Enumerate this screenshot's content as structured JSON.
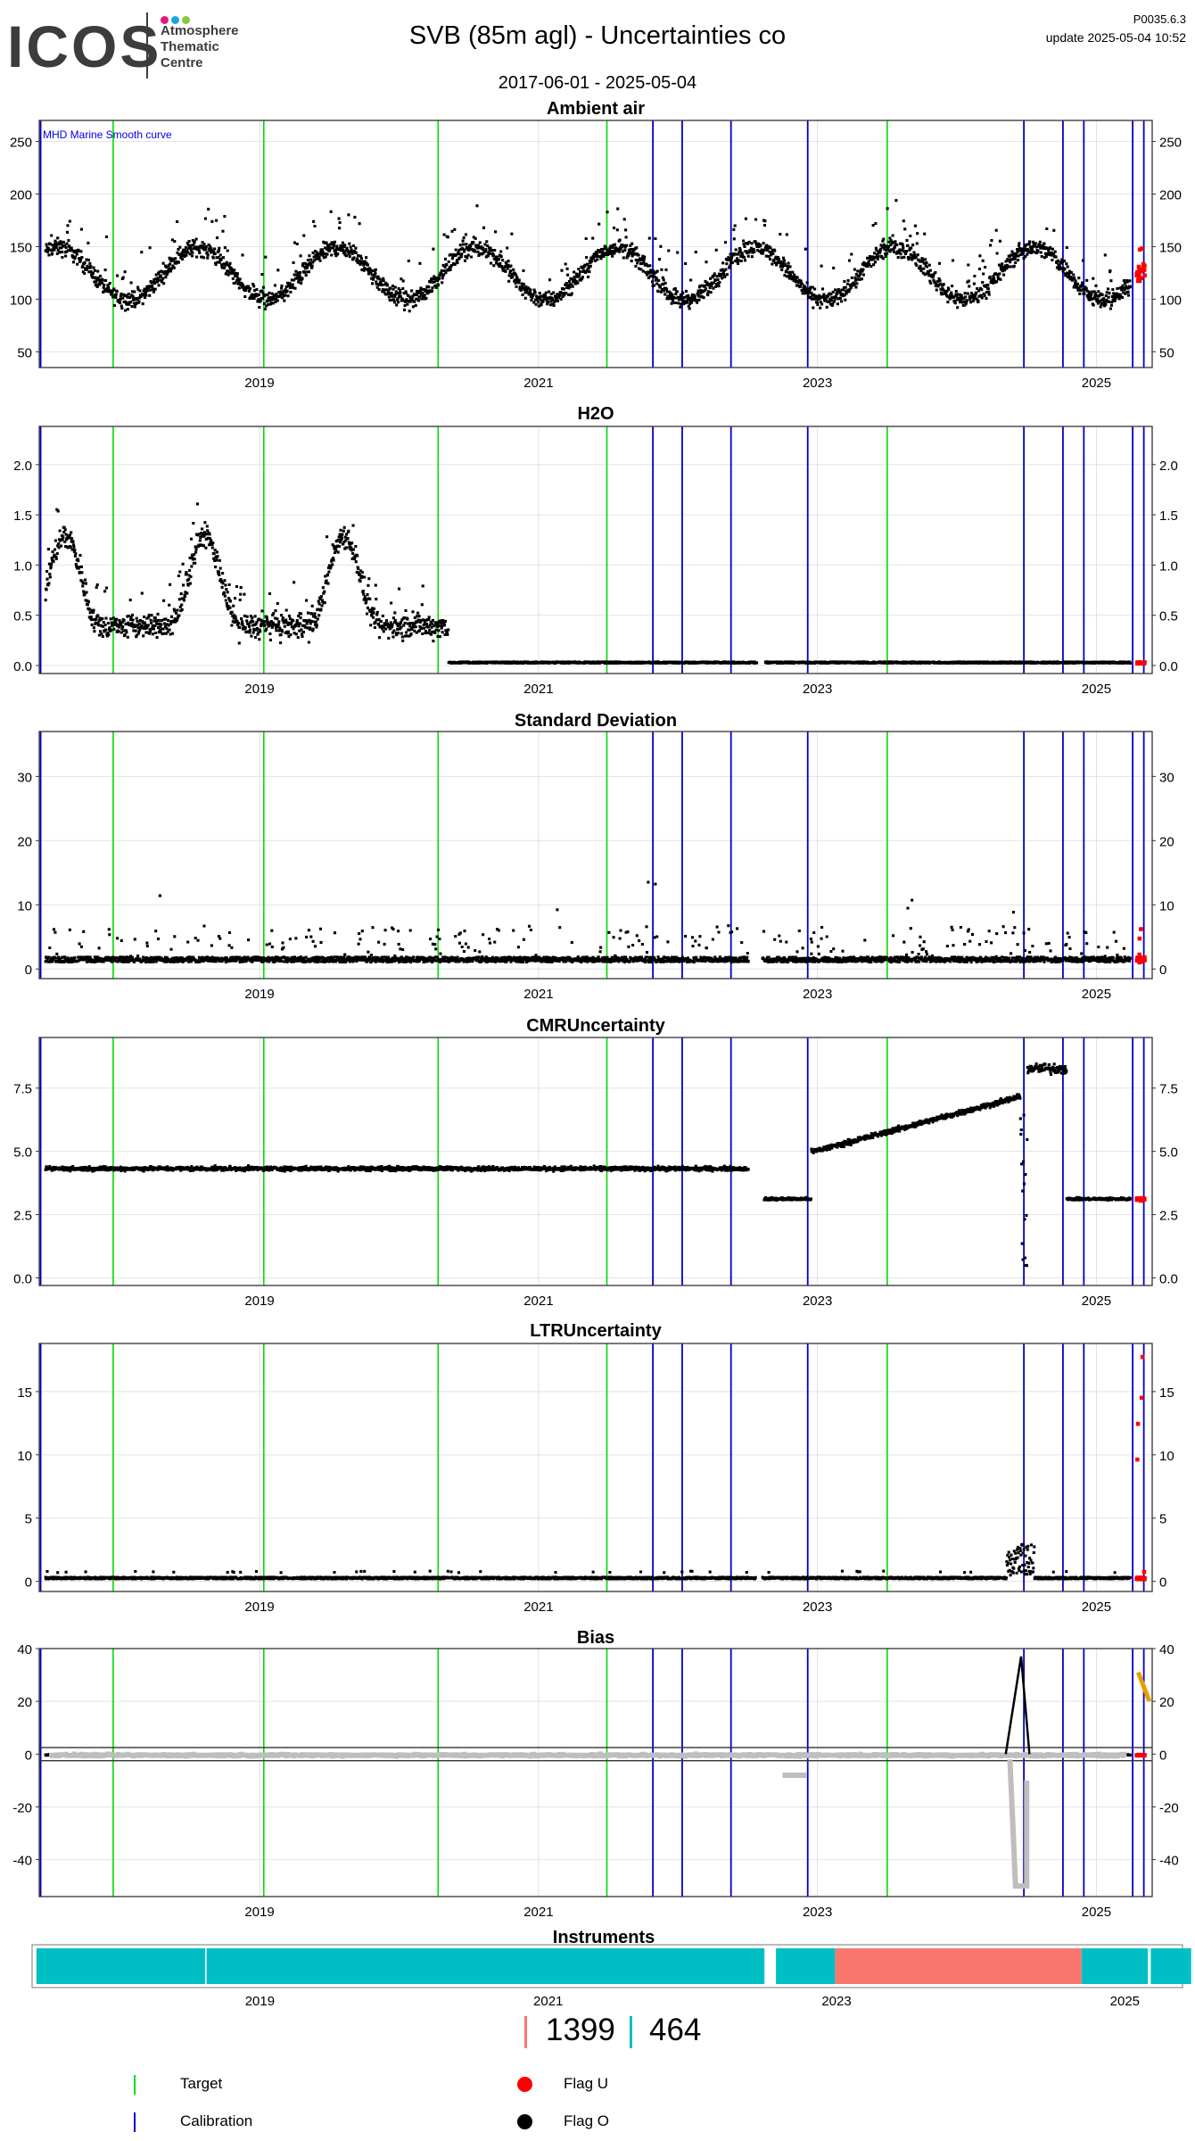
{
  "header": {
    "logo_text": "ICOS",
    "logo_line1": "Atmosphere",
    "logo_line2": "Thematic",
    "logo_line3": "Centre",
    "logo_dot_colors": [
      "#e5177e",
      "#1aa7e0",
      "#8cc540"
    ],
    "title": "SVB  (85m agl) - Uncertainties co",
    "date_range": "2017-06-01 - 2025-05-04",
    "version": "P0035.6.3",
    "update": "update  2025-05-04 10:52"
  },
  "colors": {
    "target": "#00dd00",
    "calibration": "#0000cc",
    "flag_u": "#ff0000",
    "flag_o": "#000000",
    "instrument_a": "#00bfc4",
    "instrument_b": "#f8766d",
    "grey_series": "#bebebe",
    "orange_series": "#e69f00"
  },
  "event_lines": {
    "target": [
      2017.95,
      2019.03,
      2020.28,
      2021.49,
      2023.5
    ],
    "calibration": [
      2017.43,
      2021.82,
      2022.03,
      2022.38,
      2022.93,
      2024.48,
      2024.76,
      2024.91,
      2025.26,
      2025.34
    ]
  },
  "chart_data": [
    {
      "type": "scatter",
      "title": "Ambient air",
      "ylim": [
        35,
        270
      ],
      "ticks": [
        50,
        100,
        150,
        200,
        250
      ],
      "xlim": [
        2017.42,
        2025.4
      ],
      "x_ticks": [
        "2019",
        "2021",
        "2023",
        "2025"
      ],
      "annotation": "MHD Marine Smooth curve",
      "profile": "ambient",
      "series": [
        {
          "name": "Flag O"
        },
        {
          "name": "Flag U"
        }
      ]
    },
    {
      "type": "scatter",
      "title": "H2O",
      "ylim": [
        -0.08,
        2.38
      ],
      "ticks": [
        0.0,
        0.5,
        1.0,
        1.5,
        2.0
      ],
      "tick_labels": [
        "0.0",
        "0.5",
        "1.0",
        "1.5",
        "2.0"
      ],
      "xlim": [
        2017.42,
        2025.4
      ],
      "x_ticks": [
        "2019",
        "2021",
        "2023",
        "2025"
      ],
      "profile": "h2o",
      "series": [
        {
          "name": "Flag O"
        },
        {
          "name": "Flag U"
        }
      ]
    },
    {
      "type": "scatter",
      "title": "Standard Deviation",
      "ylim": [
        -1.5,
        37
      ],
      "ticks": [
        0,
        10,
        20,
        30
      ],
      "xlim": [
        2017.42,
        2025.4
      ],
      "x_ticks": [
        "2019",
        "2021",
        "2023",
        "2025"
      ],
      "profile": "sd",
      "series": [
        {
          "name": "Flag O"
        },
        {
          "name": "Flag U"
        }
      ]
    },
    {
      "type": "scatter",
      "title": "CMRUncertainty",
      "ylim": [
        -0.3,
        9.5
      ],
      "ticks": [
        0.0,
        2.5,
        5.0,
        7.5
      ],
      "tick_labels": [
        "0.0",
        "2.5",
        "5.0",
        "7.5"
      ],
      "xlim": [
        2017.42,
        2025.4
      ],
      "x_ticks": [
        "2019",
        "2021",
        "2023",
        "2025"
      ],
      "profile": "cmr",
      "series": [
        {
          "name": "Flag O"
        },
        {
          "name": "Flag U"
        }
      ]
    },
    {
      "type": "scatter",
      "title": "LTRUncertainty",
      "ylim": [
        -0.8,
        18.8
      ],
      "ticks": [
        0,
        5,
        10,
        15
      ],
      "xlim": [
        2017.42,
        2025.4
      ],
      "x_ticks": [
        "2019",
        "2021",
        "2023",
        "2025"
      ],
      "profile": "ltr",
      "series": [
        {
          "name": "Flag O"
        },
        {
          "name": "Flag U"
        }
      ]
    },
    {
      "type": "scatter",
      "title": "Bias",
      "ylim": [
        -54,
        40
      ],
      "ticks": [
        -40,
        -20,
        0,
        20,
        40
      ],
      "xlim": [
        2017.42,
        2025.4
      ],
      "x_ticks": [
        "2019",
        "2021",
        "2023",
        "2025"
      ],
      "ref_lines": [
        2.5,
        -2.5
      ],
      "profile": "bias",
      "series": [
        {
          "name": "Flag O"
        },
        {
          "name": "Flag U"
        }
      ]
    },
    {
      "type": "bar",
      "title": "Instruments",
      "xlim": [
        2017.42,
        2025.4
      ],
      "x_ticks": [
        "2019",
        "2021",
        "2023",
        "2025"
      ],
      "segments": [
        {
          "start": 2017.45,
          "end": 2018.62,
          "instrument": "464"
        },
        {
          "start": 2018.63,
          "end": 2022.5,
          "instrument": "464"
        },
        {
          "start": 2022.58,
          "end": 2022.99,
          "instrument": "464"
        },
        {
          "start": 2022.99,
          "end": 2024.7,
          "instrument": "1399"
        },
        {
          "start": 2024.7,
          "end": 2025.16,
          "instrument": "464"
        },
        {
          "start": 2025.18,
          "end": 2025.46,
          "instrument": "464"
        }
      ]
    }
  ],
  "instruments_legend": [
    {
      "id": "1399",
      "color": "#f8766d"
    },
    {
      "id": "464",
      "color": "#00bfc4"
    }
  ],
  "legend": [
    {
      "label": "Target",
      "kind": "line",
      "color": "#00dd00"
    },
    {
      "label": "Calibration",
      "kind": "line",
      "color": "#0000cc"
    },
    {
      "label": "Flag U",
      "kind": "dot",
      "color": "#ff0000"
    },
    {
      "label": "Flag O",
      "kind": "dot",
      "color": "#000000"
    }
  ]
}
